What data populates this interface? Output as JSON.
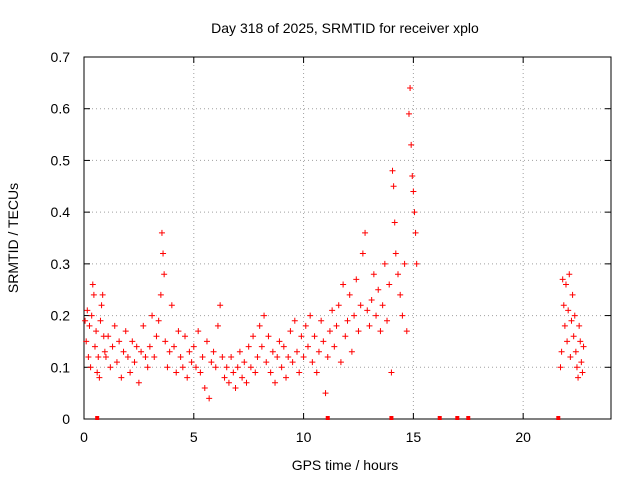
{
  "chart_data": {
    "type": "scatter",
    "title": "Day 318 of 2025, SRMTID for receiver xplo",
    "xlabel": "GPS time / hours",
    "ylabel": "SRMTID / TECUs",
    "xlim": [
      0,
      24
    ],
    "ylim": [
      0,
      0.7
    ],
    "x_ticks": [
      0,
      5,
      10,
      15,
      20
    ],
    "x_tick_labels": [
      "0",
      "5",
      "10",
      "15",
      "20"
    ],
    "y_ticks": [
      0,
      0.1,
      0.2,
      0.3,
      0.4,
      0.5,
      0.6,
      0.7
    ],
    "y_tick_labels": [
      "0",
      "0.1",
      "0.2",
      "0.3",
      "0.4",
      "0.5",
      "0.6",
      "0.7"
    ],
    "grid": true,
    "marker": "plus",
    "series": [
      {
        "name": "SRMTID",
        "color": "#ff0000",
        "points": [
          [
            0.05,
            0.19
          ],
          [
            0.1,
            0.15
          ],
          [
            0.15,
            0.21
          ],
          [
            0.2,
            0.12
          ],
          [
            0.25,
            0.18
          ],
          [
            0.3,
            0.1
          ],
          [
            0.35,
            0.2
          ],
          [
            0.4,
            0.26
          ],
          [
            0.45,
            0.24
          ],
          [
            0.5,
            0.14
          ],
          [
            0.55,
            0.17
          ],
          [
            0.6,
            0.09
          ],
          [
            0.65,
            0.12
          ],
          [
            0.7,
            0.08
          ],
          [
            0.75,
            0.19
          ],
          [
            0.8,
            0.22
          ],
          [
            0.85,
            0.24
          ],
          [
            0.9,
            0.16
          ],
          [
            0.95,
            0.13
          ],
          [
            1.0,
            0.12
          ],
          [
            1.1,
            0.16
          ],
          [
            1.2,
            0.1
          ],
          [
            1.3,
            0.14
          ],
          [
            1.4,
            0.18
          ],
          [
            1.5,
            0.11
          ],
          [
            1.6,
            0.15
          ],
          [
            1.7,
            0.08
          ],
          [
            1.8,
            0.13
          ],
          [
            1.9,
            0.17
          ],
          [
            2.0,
            0.12
          ],
          [
            2.1,
            0.09
          ],
          [
            2.2,
            0.15
          ],
          [
            2.3,
            0.11
          ],
          [
            2.4,
            0.14
          ],
          [
            2.5,
            0.07
          ],
          [
            2.6,
            0.13
          ],
          [
            2.7,
            0.18
          ],
          [
            2.8,
            0.12
          ],
          [
            2.9,
            0.1
          ],
          [
            3.0,
            0.14
          ],
          [
            3.1,
            0.2
          ],
          [
            3.2,
            0.12
          ],
          [
            3.3,
            0.16
          ],
          [
            3.4,
            0.19
          ],
          [
            3.5,
            0.24
          ],
          [
            3.55,
            0.36
          ],
          [
            3.6,
            0.32
          ],
          [
            3.65,
            0.28
          ],
          [
            3.7,
            0.15
          ],
          [
            3.8,
            0.1
          ],
          [
            3.9,
            0.13
          ],
          [
            4.0,
            0.22
          ],
          [
            4.1,
            0.14
          ],
          [
            4.2,
            0.09
          ],
          [
            4.3,
            0.17
          ],
          [
            4.4,
            0.12
          ],
          [
            4.5,
            0.1
          ],
          [
            4.6,
            0.16
          ],
          [
            4.7,
            0.08
          ],
          [
            4.8,
            0.13
          ],
          [
            4.9,
            0.11
          ],
          [
            5.0,
            0.14
          ],
          [
            5.1,
            0.1
          ],
          [
            5.2,
            0.17
          ],
          [
            5.3,
            0.09
          ],
          [
            5.4,
            0.12
          ],
          [
            5.5,
            0.06
          ],
          [
            5.6,
            0.15
          ],
          [
            5.7,
            0.04
          ],
          [
            5.8,
            0.11
          ],
          [
            5.9,
            0.13
          ],
          [
            6.0,
            0.1
          ],
          [
            6.1,
            0.18
          ],
          [
            6.2,
            0.22
          ],
          [
            6.3,
            0.12
          ],
          [
            6.4,
            0.08
          ],
          [
            6.5,
            0.1
          ],
          [
            6.6,
            0.07
          ],
          [
            6.7,
            0.12
          ],
          [
            6.8,
            0.09
          ],
          [
            6.9,
            0.06
          ],
          [
            7.0,
            0.1
          ],
          [
            7.1,
            0.13
          ],
          [
            7.2,
            0.08
          ],
          [
            7.3,
            0.11
          ],
          [
            7.4,
            0.07
          ],
          [
            7.5,
            0.14
          ],
          [
            7.6,
            0.1
          ],
          [
            7.7,
            0.16
          ],
          [
            7.8,
            0.09
          ],
          [
            7.9,
            0.12
          ],
          [
            8.0,
            0.18
          ],
          [
            8.1,
            0.14
          ],
          [
            8.2,
            0.2
          ],
          [
            8.3,
            0.11
          ],
          [
            8.4,
            0.16
          ],
          [
            8.5,
            0.09
          ],
          [
            8.6,
            0.13
          ],
          [
            8.7,
            0.07
          ],
          [
            8.8,
            0.12
          ],
          [
            8.9,
            0.15
          ],
          [
            9.0,
            0.1
          ],
          [
            9.1,
            0.14
          ],
          [
            9.2,
            0.08
          ],
          [
            9.3,
            0.12
          ],
          [
            9.4,
            0.17
          ],
          [
            9.5,
            0.11
          ],
          [
            9.6,
            0.19
          ],
          [
            9.7,
            0.13
          ],
          [
            9.8,
            0.09
          ],
          [
            9.9,
            0.16
          ],
          [
            10.0,
            0.12
          ],
          [
            10.1,
            0.18
          ],
          [
            10.2,
            0.14
          ],
          [
            10.3,
            0.2
          ],
          [
            10.4,
            0.11
          ],
          [
            10.5,
            0.16
          ],
          [
            10.6,
            0.09
          ],
          [
            10.7,
            0.13
          ],
          [
            10.8,
            0.19
          ],
          [
            10.9,
            0.15
          ],
          [
            11.0,
            0.05
          ],
          [
            11.1,
            0.12
          ],
          [
            11.2,
            0.17
          ],
          [
            11.3,
            0.21
          ],
          [
            11.4,
            0.14
          ],
          [
            11.5,
            0.18
          ],
          [
            11.6,
            0.22
          ],
          [
            11.7,
            0.11
          ],
          [
            11.8,
            0.26
          ],
          [
            11.9,
            0.16
          ],
          [
            12.0,
            0.19
          ],
          [
            12.1,
            0.24
          ],
          [
            12.2,
            0.13
          ],
          [
            12.3,
            0.2
          ],
          [
            12.4,
            0.27
          ],
          [
            12.5,
            0.17
          ],
          [
            12.6,
            0.22
          ],
          [
            12.7,
            0.32
          ],
          [
            12.8,
            0.36
          ],
          [
            12.9,
            0.21
          ],
          [
            13.0,
            0.18
          ],
          [
            13.1,
            0.23
          ],
          [
            13.2,
            0.28
          ],
          [
            13.3,
            0.2
          ],
          [
            13.4,
            0.25
          ],
          [
            13.5,
            0.17
          ],
          [
            13.6,
            0.22
          ],
          [
            13.7,
            0.3
          ],
          [
            13.8,
            0.19
          ],
          [
            13.9,
            0.26
          ],
          [
            14.0,
            0.09
          ],
          [
            14.05,
            0.48
          ],
          [
            14.1,
            0.45
          ],
          [
            14.15,
            0.38
          ],
          [
            14.2,
            0.32
          ],
          [
            14.3,
            0.28
          ],
          [
            14.4,
            0.24
          ],
          [
            14.5,
            0.2
          ],
          [
            14.6,
            0.3
          ],
          [
            14.7,
            0.17
          ],
          [
            14.8,
            0.59
          ],
          [
            14.85,
            0.64
          ],
          [
            14.9,
            0.53
          ],
          [
            14.95,
            0.47
          ],
          [
            15.0,
            0.44
          ],
          [
            15.05,
            0.4
          ],
          [
            15.1,
            0.36
          ],
          [
            15.15,
            0.3
          ],
          [
            21.7,
            0.1
          ],
          [
            21.75,
            0.13
          ],
          [
            21.8,
            0.27
          ],
          [
            21.85,
            0.22
          ],
          [
            21.9,
            0.18
          ],
          [
            21.95,
            0.26
          ],
          [
            22.0,
            0.15
          ],
          [
            22.05,
            0.21
          ],
          [
            22.1,
            0.28
          ],
          [
            22.15,
            0.12
          ],
          [
            22.2,
            0.19
          ],
          [
            22.25,
            0.24
          ],
          [
            22.3,
            0.16
          ],
          [
            22.35,
            0.2
          ],
          [
            22.4,
            0.13
          ],
          [
            22.45,
            0.1
          ],
          [
            22.5,
            0.08
          ],
          [
            22.55,
            0.18
          ],
          [
            22.6,
            0.15
          ],
          [
            22.65,
            0.11
          ],
          [
            22.7,
            0.09
          ],
          [
            22.75,
            0.14
          ]
        ]
      }
    ],
    "zero_markers_x": [
      0.6,
      11.1,
      14.0,
      16.2,
      17.0,
      17.5,
      21.6
    ]
  }
}
